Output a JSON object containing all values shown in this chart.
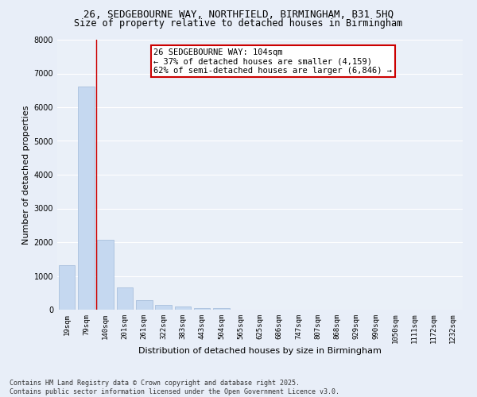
{
  "title_line1": "26, SEDGEBOURNE WAY, NORTHFIELD, BIRMINGHAM, B31 5HQ",
  "title_line2": "Size of property relative to detached houses in Birmingham",
  "xlabel": "Distribution of detached houses by size in Birmingham",
  "ylabel": "Number of detached properties",
  "categories": [
    "19sqm",
    "79sqm",
    "140sqm",
    "201sqm",
    "261sqm",
    "322sqm",
    "383sqm",
    "443sqm",
    "504sqm",
    "565sqm",
    "625sqm",
    "686sqm",
    "747sqm",
    "807sqm",
    "868sqm",
    "929sqm",
    "990sqm",
    "1050sqm",
    "1111sqm",
    "1172sqm",
    "1232sqm"
  ],
  "values": [
    1320,
    6620,
    2080,
    670,
    290,
    140,
    90,
    50,
    50,
    0,
    0,
    0,
    0,
    0,
    0,
    0,
    0,
    0,
    0,
    0,
    0
  ],
  "bar_color": "#c5d8f0",
  "bar_edge_color": "#a0b8d8",
  "vline_x_index": 1.5,
  "vline_color": "#cc0000",
  "annotation_text": "26 SEDGEBOURNE WAY: 104sqm\n← 37% of detached houses are smaller (4,159)\n62% of semi-detached houses are larger (6,846) →",
  "annotation_box_color": "#ffffff",
  "annotation_box_edge_color": "#cc0000",
  "ylim": [
    0,
    8000
  ],
  "yticks": [
    0,
    1000,
    2000,
    3000,
    4000,
    5000,
    6000,
    7000,
    8000
  ],
  "background_color": "#e8eef8",
  "plot_background_color": "#eaf0f8",
  "grid_color": "#ffffff",
  "footer_line1": "Contains HM Land Registry data © Crown copyright and database right 2025.",
  "footer_line2": "Contains public sector information licensed under the Open Government Licence v3.0.",
  "title_fontsize": 9,
  "subtitle_fontsize": 8.5,
  "axis_label_fontsize": 8,
  "tick_fontsize": 6.5,
  "annotation_fontsize": 7.5,
  "footer_fontsize": 6
}
